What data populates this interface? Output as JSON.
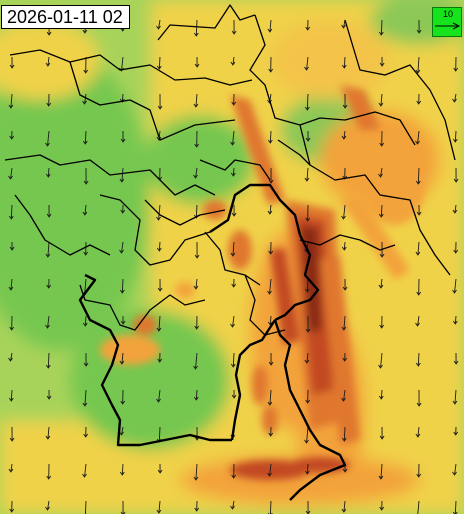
{
  "timestamp": "2026-01-11 02",
  "legend": {
    "value": "10",
    "arrow_icon": "arrow-right-icon",
    "box_color": "#16e31b"
  },
  "palette": {
    "low": "#76c74f",
    "mid_low": "#a8d35a",
    "mid": "#f0d24a",
    "mid_high": "#f3a33b",
    "high": "#e0772f",
    "very_high": "#c24a20",
    "extreme": "#8a2b14"
  }
}
